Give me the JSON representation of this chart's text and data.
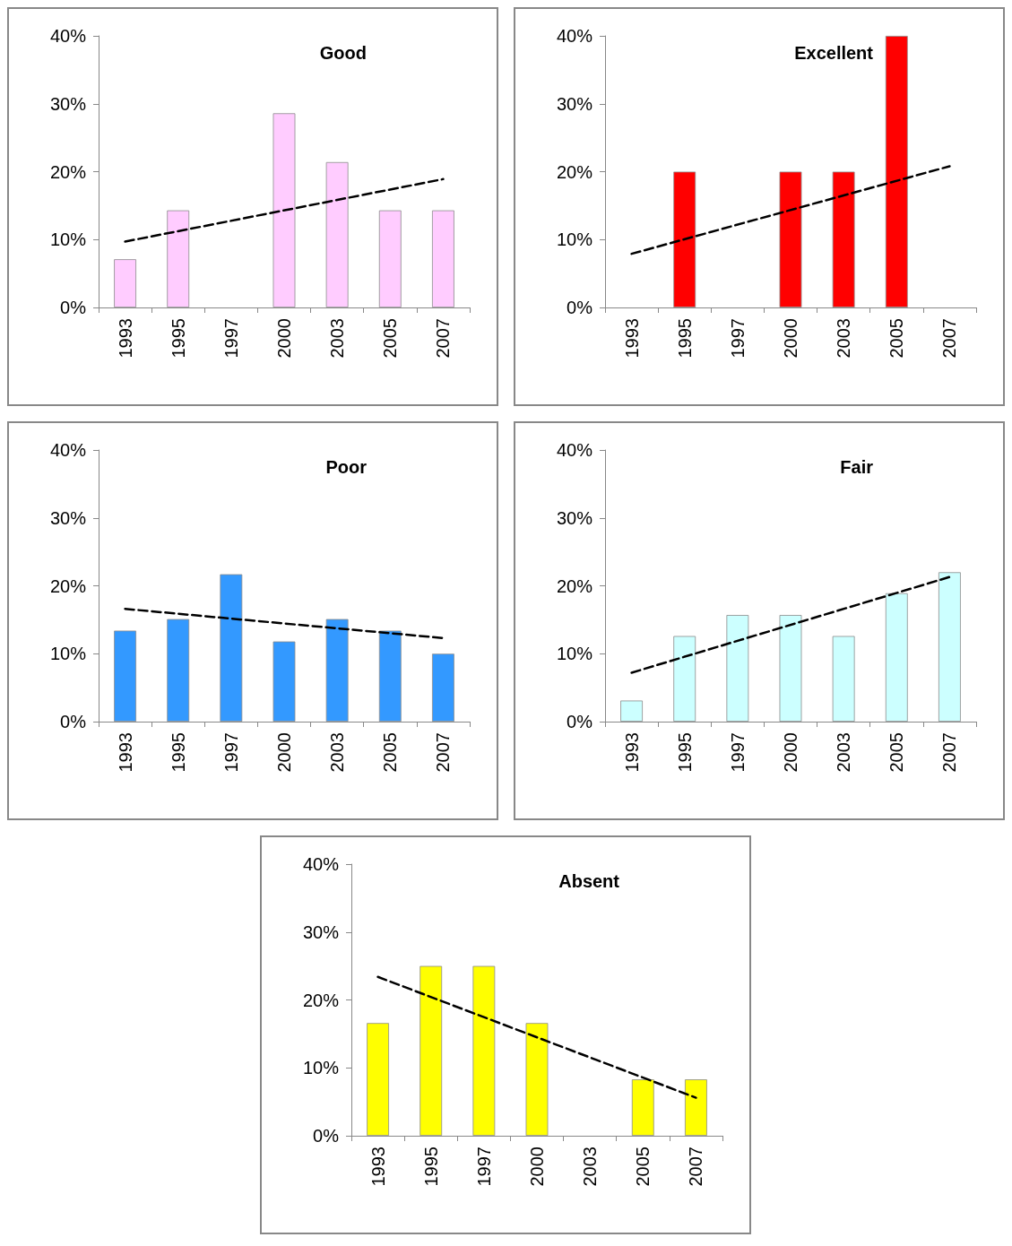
{
  "chart_data": [
    {
      "type": "bar",
      "title": "Good",
      "categories": [
        "1993",
        "1995",
        "1997",
        "2000",
        "2003",
        "2005",
        "2007"
      ],
      "ylim": [
        0,
        40
      ],
      "yticks": [
        {
          "value": 0,
          "label": "0%"
        },
        {
          "value": 10,
          "label": "10%"
        },
        {
          "value": 20,
          "label": "20%"
        },
        {
          "value": 30,
          "label": "30%"
        },
        {
          "value": 40,
          "label": "40%"
        }
      ],
      "grid": false,
      "series": [
        {
          "color": "#ffccff",
          "values": [
            7.1,
            14.3,
            0,
            28.6,
            21.4,
            14.3,
            14.3
          ]
        },
        {
          "type": "line",
          "color": "#000000",
          "line_style": "dashed",
          "marker": "none",
          "values": [
            9.7,
            null,
            null,
            null,
            null,
            null,
            18.9
          ]
        }
      ]
    },
    {
      "type": "bar",
      "title": "Excellent",
      "categories": [
        "1993",
        "1995",
        "1997",
        "2000",
        "2003",
        "2005",
        "2007"
      ],
      "ylim": [
        0,
        40
      ],
      "yticks": [
        {
          "value": 0,
          "label": "0%"
        },
        {
          "value": 10,
          "label": "10%"
        },
        {
          "value": 20,
          "label": "20%"
        },
        {
          "value": 30,
          "label": "30%"
        },
        {
          "value": 40,
          "label": "40%"
        }
      ],
      "grid": false,
      "series": [
        {
          "color": "#ff0000",
          "values": [
            0,
            20,
            0,
            20,
            20,
            40,
            0
          ]
        },
        {
          "type": "line",
          "color": "#000000",
          "line_style": "dashed",
          "marker": "none",
          "values": [
            7.9,
            null,
            null,
            null,
            null,
            null,
            20.8
          ]
        }
      ]
    },
    {
      "type": "bar",
      "title": "Poor",
      "categories": [
        "1993",
        "1995",
        "1997",
        "2000",
        "2003",
        "2005",
        "2007"
      ],
      "ylim": [
        0,
        40
      ],
      "yticks": [
        {
          "value": 0,
          "label": "0%"
        },
        {
          "value": 10,
          "label": "10%"
        },
        {
          "value": 20,
          "label": "20%"
        },
        {
          "value": 30,
          "label": "30%"
        },
        {
          "value": 40,
          "label": "40%"
        }
      ],
      "grid": false,
      "series": [
        {
          "color": "#3399ff",
          "values": [
            13.4,
            15.1,
            21.7,
            11.8,
            15.1,
            13.4,
            10.0
          ]
        },
        {
          "type": "line",
          "color": "#000000",
          "line_style": "dashed",
          "marker": "none",
          "values": [
            16.6,
            null,
            null,
            null,
            null,
            null,
            12.3
          ]
        }
      ]
    },
    {
      "type": "bar",
      "title": "Fair",
      "categories": [
        "1993",
        "1995",
        "1997",
        "2000",
        "2003",
        "2005",
        "2007"
      ],
      "ylim": [
        0,
        40
      ],
      "yticks": [
        {
          "value": 0,
          "label": "0%"
        },
        {
          "value": 10,
          "label": "10%"
        },
        {
          "value": 20,
          "label": "20%"
        },
        {
          "value": 30,
          "label": "30%"
        },
        {
          "value": 40,
          "label": "40%"
        }
      ],
      "grid": false,
      "series": [
        {
          "color": "#ccffff",
          "values": [
            3.1,
            12.6,
            15.7,
            15.7,
            12.6,
            18.9,
            22.0
          ]
        },
        {
          "type": "line",
          "color": "#000000",
          "line_style": "dashed",
          "marker": "none",
          "values": [
            7.2,
            null,
            null,
            null,
            null,
            null,
            21.3
          ]
        }
      ]
    },
    {
      "type": "bar",
      "title": "Absent",
      "categories": [
        "1993",
        "1995",
        "1997",
        "2000",
        "2003",
        "2005",
        "2007"
      ],
      "ylim": [
        0,
        40
      ],
      "yticks": [
        {
          "value": 0,
          "label": "0%"
        },
        {
          "value": 10,
          "label": "10%"
        },
        {
          "value": 20,
          "label": "20%"
        },
        {
          "value": 30,
          "label": "30%"
        },
        {
          "value": 40,
          "label": "40%"
        }
      ],
      "grid": false,
      "series": [
        {
          "color": "#ffff00",
          "values": [
            16.6,
            25.0,
            25.0,
            16.6,
            0,
            8.3,
            8.3
          ]
        },
        {
          "type": "line",
          "color": "#000000",
          "line_style": "dashed",
          "marker": "none",
          "values": [
            23.4,
            null,
            null,
            null,
            null,
            null,
            5.6
          ]
        }
      ]
    }
  ]
}
